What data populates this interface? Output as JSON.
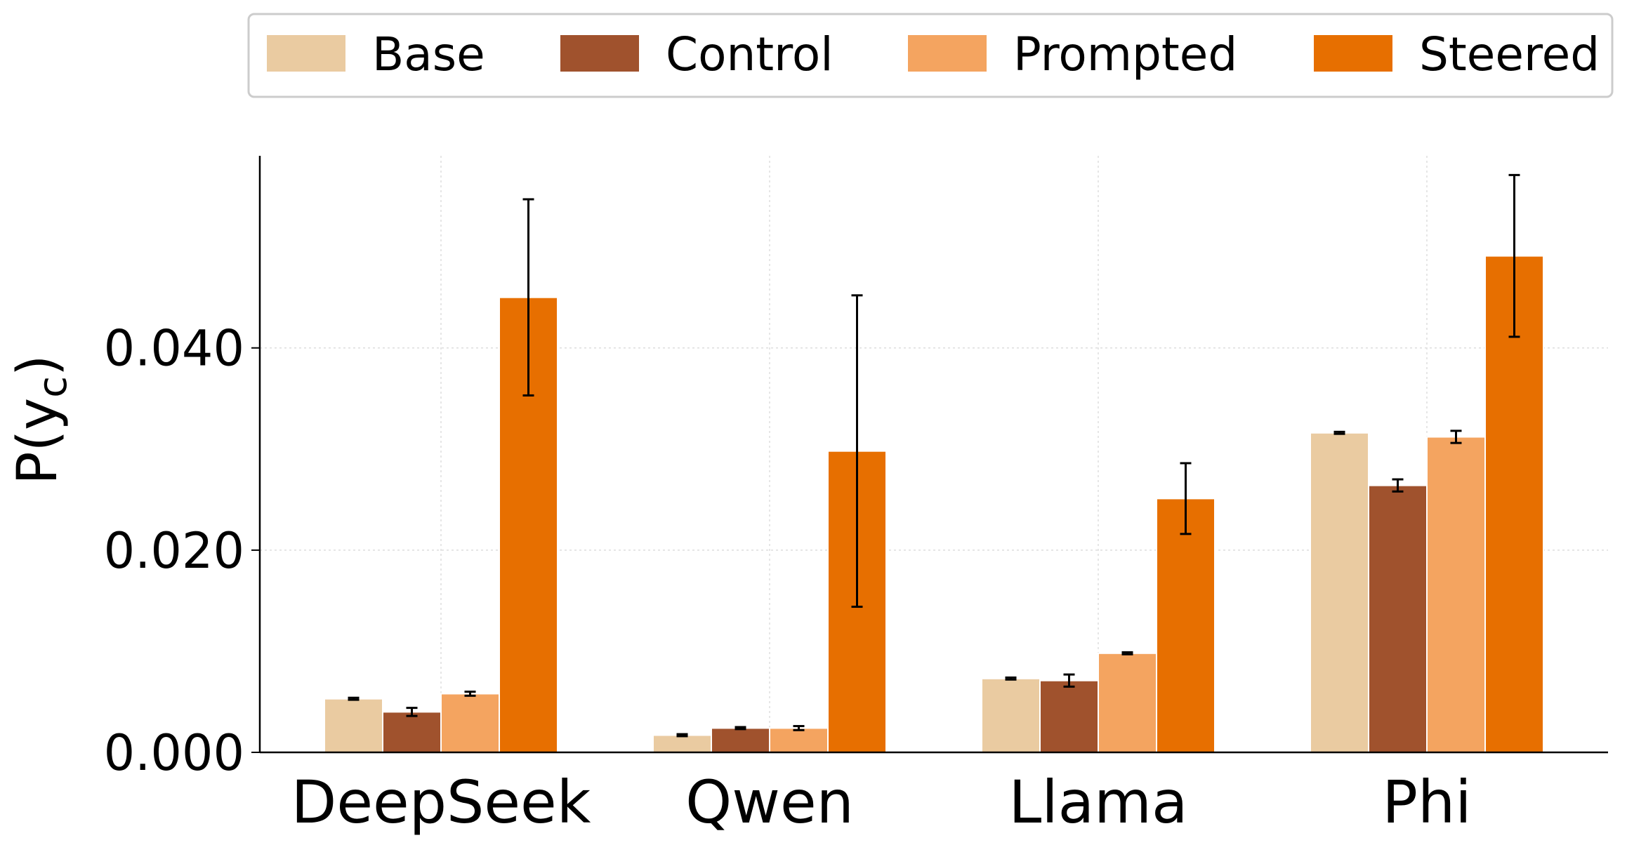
{
  "chart_data": {
    "type": "bar",
    "categories": [
      "DeepSeek",
      "Qwen",
      "Llama",
      "Phi"
    ],
    "series": [
      {
        "name": "Base",
        "color": "#EACBA1",
        "values": [
          0.0053,
          0.0017,
          0.0073,
          0.0316
        ],
        "errors": [
          0.0001,
          0.0001,
          0.0001,
          0.0001
        ]
      },
      {
        "name": "Control",
        "color": "#A0522D",
        "values": [
          0.004,
          0.0024,
          0.0071,
          0.0264
        ],
        "errors": [
          0.0004,
          0.0001,
          0.0006,
          0.0006
        ]
      },
      {
        "name": "Prompted",
        "color": "#F4A460",
        "values": [
          0.0058,
          0.0024,
          0.0098,
          0.0312
        ],
        "errors": [
          0.0002,
          0.0002,
          0.0001,
          0.0006
        ]
      },
      {
        "name": "Steered",
        "color": "#E76F00",
        "values": [
          0.045,
          0.0298,
          0.0251,
          0.0491
        ],
        "errors": [
          0.0097,
          0.0154,
          0.0035,
          0.008
        ]
      }
    ],
    "xlabel": "",
    "ylabel": "P(y_c)",
    "ylabel_main": "P(y",
    "ylabel_sub": "c",
    "ylabel_close": ")",
    "ylim": [
      0,
      0.059
    ],
    "yticks": [
      0.0,
      0.02,
      0.04
    ],
    "ytick_labels": [
      "0.000",
      "0.020",
      "0.040"
    ],
    "grid": true,
    "legend_position": "top"
  }
}
